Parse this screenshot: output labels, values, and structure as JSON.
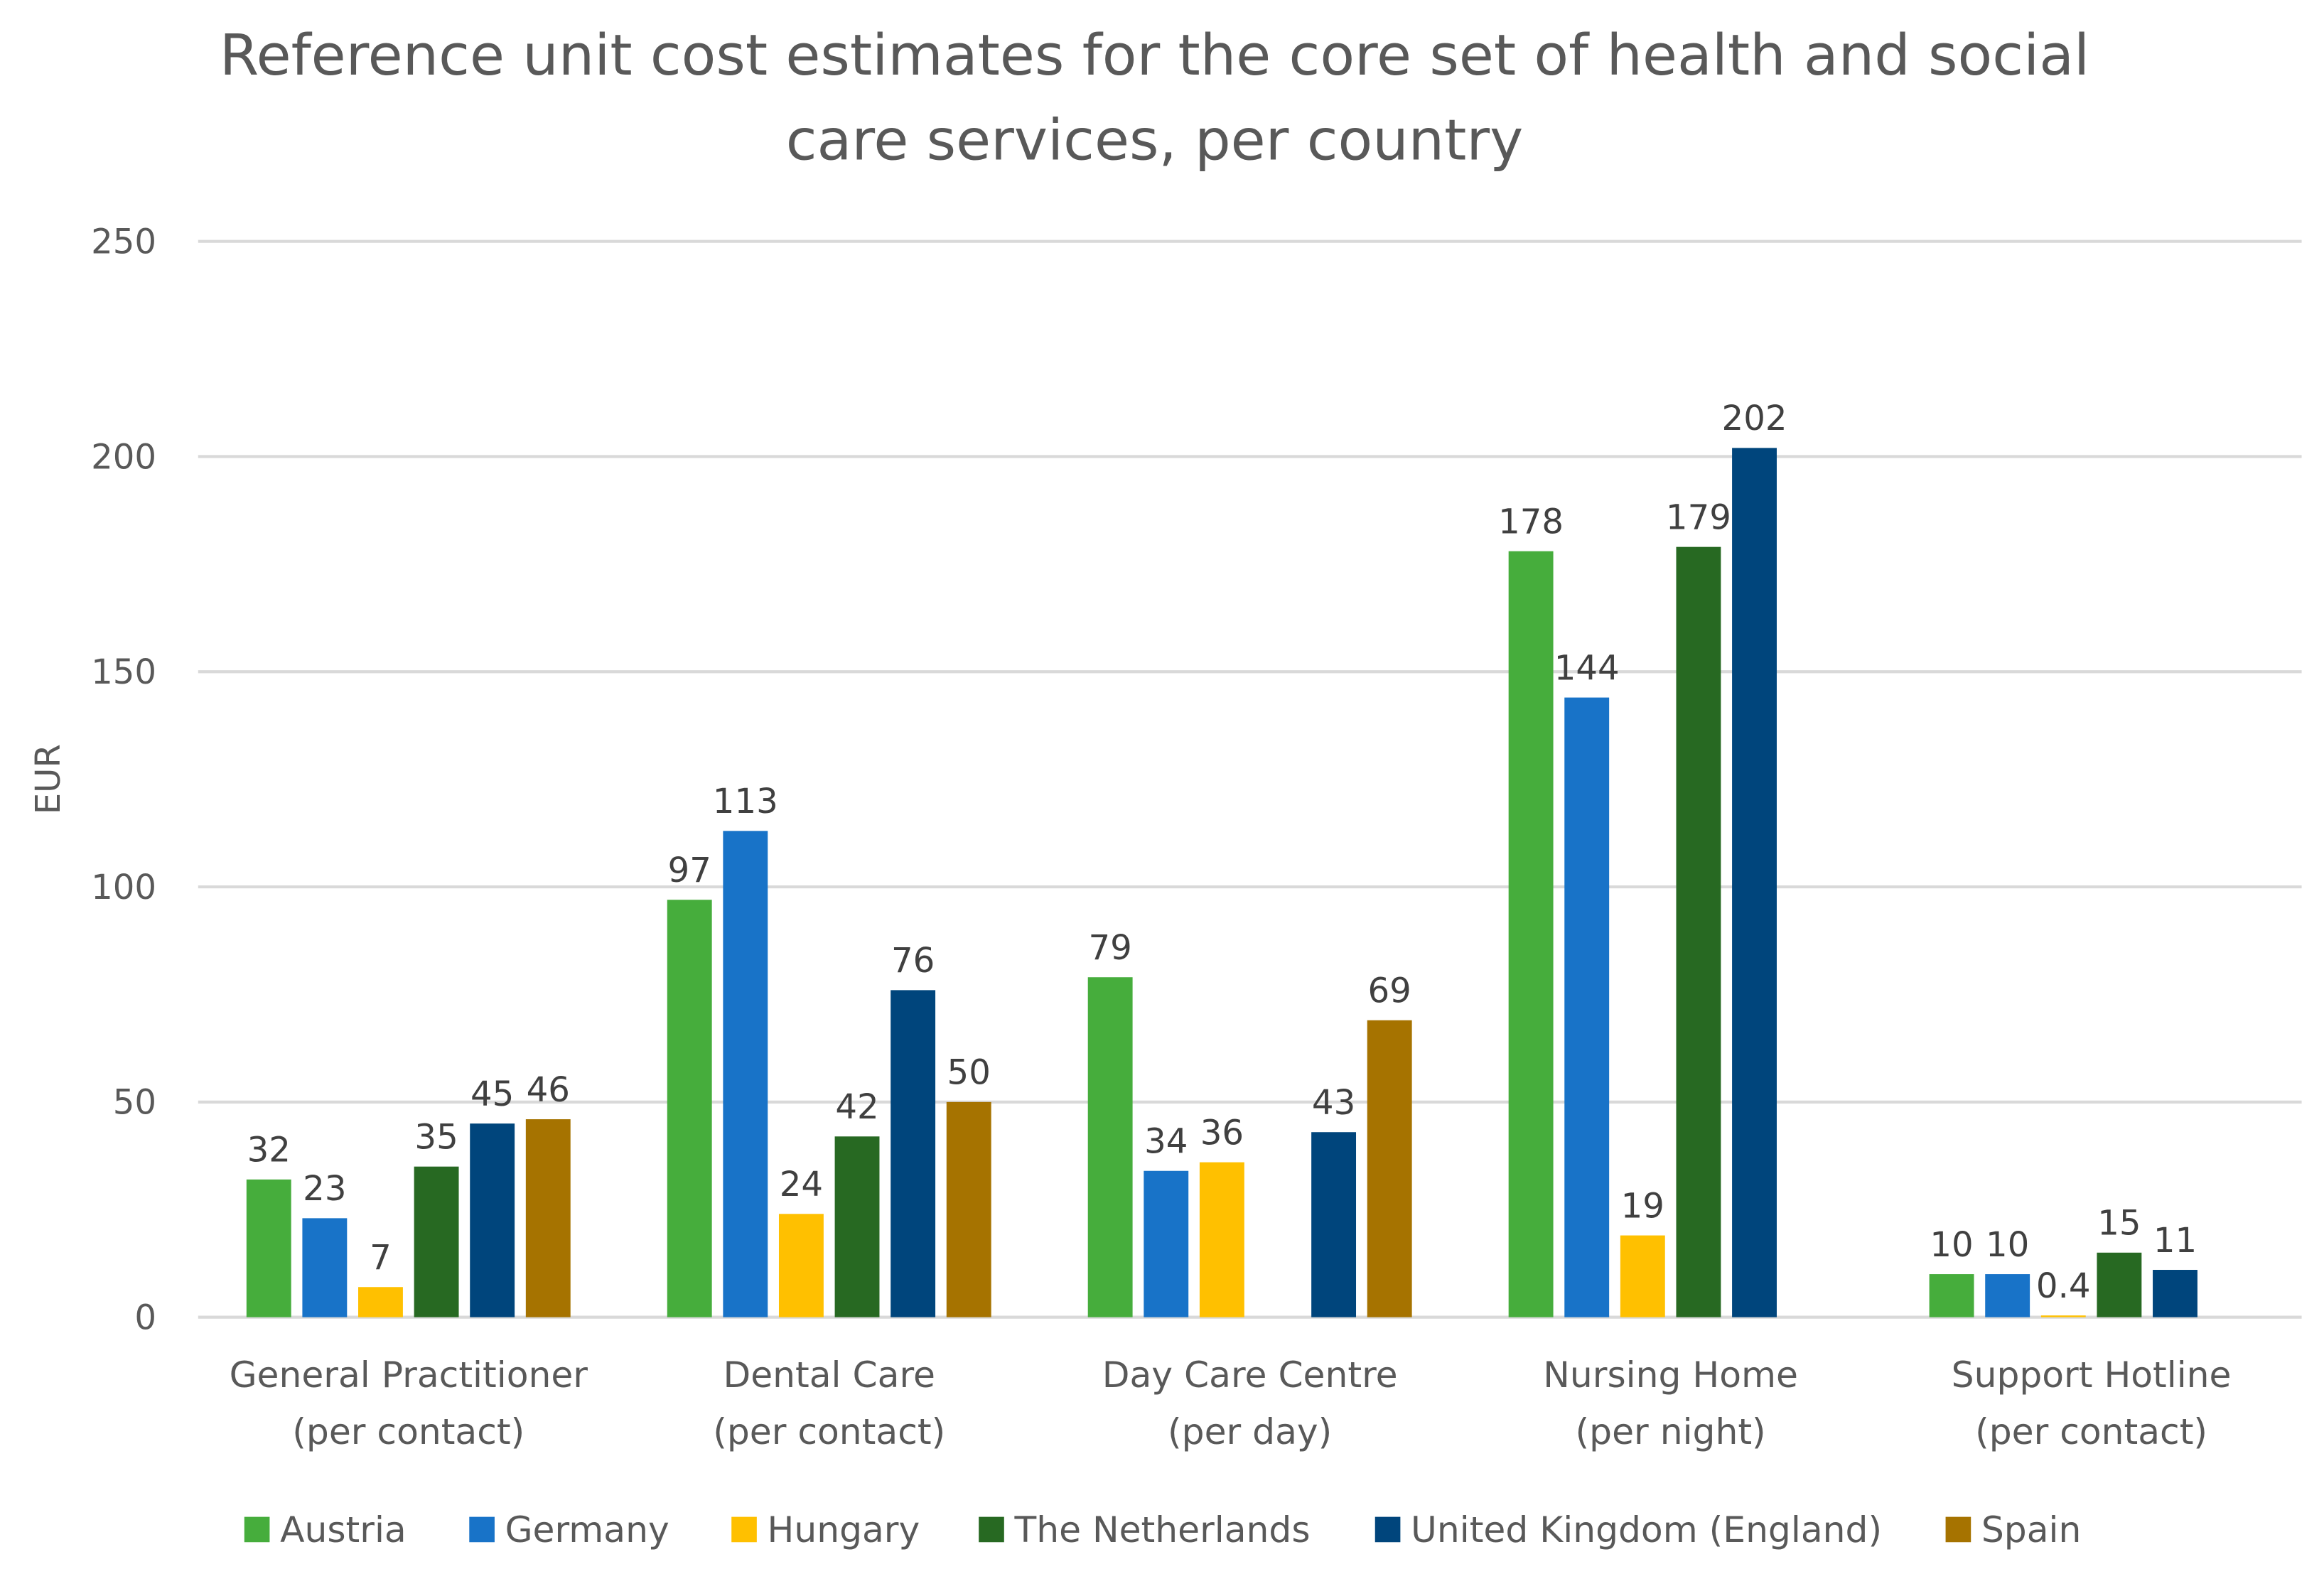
{
  "chart_data": {
    "type": "bar",
    "title": [
      "Reference unit cost estimates for the core set of health and social",
      "care services, per country"
    ],
    "xlabel": "",
    "ylabel": "EUR",
    "ylim": [
      0,
      250
    ],
    "yticks": [
      "0",
      "50",
      "100",
      "150",
      "200",
      "250"
    ],
    "ytick_values": [
      0,
      50,
      100,
      150,
      200,
      250
    ],
    "grid": true,
    "legend_position": "bottom",
    "categories": [
      [
        "General Practitioner",
        "(per contact)"
      ],
      [
        "Dental Care",
        "(per contact)"
      ],
      [
        "Day Care Centre",
        "(per day)"
      ],
      [
        "Nursing Home",
        "(per night)"
      ],
      [
        "Support Hotline",
        "(per contact)"
      ]
    ],
    "series": [
      {
        "name": "Austria",
        "color": "#46ad3c",
        "values": [
          32,
          97,
          79,
          178,
          10
        ]
      },
      {
        "name": "Germany",
        "color": "#1873c8",
        "values": [
          23,
          113,
          34,
          144,
          10
        ]
      },
      {
        "name": "Hungary",
        "color": "#ffc000",
        "values": [
          7,
          24,
          36,
          19,
          0.4
        ]
      },
      {
        "name": "The Netherlands",
        "color": "#276922",
        "values": [
          35,
          42,
          null,
          179,
          15
        ]
      },
      {
        "name": "United Kingdom (England)",
        "color": "#00457c",
        "values": [
          45,
          76,
          43,
          202,
          11
        ]
      },
      {
        "name": "Spain",
        "color": "#a67300",
        "values": [
          46,
          50,
          69,
          null,
          null
        ]
      }
    ]
  }
}
